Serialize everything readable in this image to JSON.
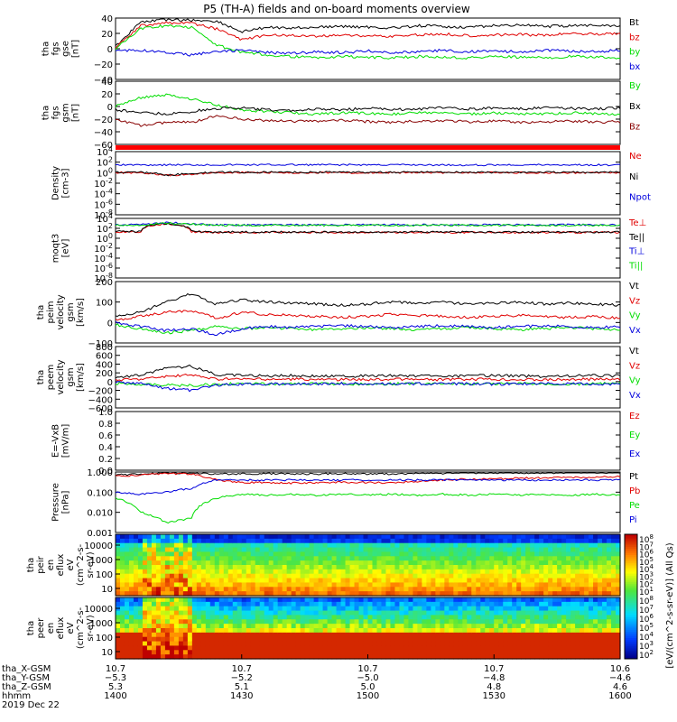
{
  "title": "P5 (TH-A) fields and on-board moments overview",
  "colors": {
    "black": "#000000",
    "red": "#e00000",
    "green": "#00dd00",
    "blue": "#0000dd",
    "darkred": "#880000"
  },
  "colorbar": {
    "label": "[eV/(cm^2-s-sr-eV)] (All Qs)",
    "ticks": [
      "10^8",
      "10^7",
      "10^6",
      "10^5",
      "10^4",
      "10^3",
      "10^2",
      "10^1"
    ],
    "ticks2": [
      "10^8",
      "10^7",
      "10^6",
      "10^5",
      "10^4",
      "10^3",
      "10^2"
    ]
  },
  "chart_data": [
    {
      "type": "line",
      "ylabel_lines": [
        "tha",
        "fgs",
        "gse",
        "[nT]"
      ],
      "ylim": [
        -40,
        40
      ],
      "yticks": [
        "40",
        "20",
        "0",
        "−20",
        "−40"
      ],
      "series": [
        {
          "name": "Bt",
          "color": "#000000",
          "values": [
            3,
            35,
            38,
            37,
            36,
            22,
            28,
            27,
            28,
            29,
            28,
            27,
            30,
            29,
            28,
            30,
            31,
            29,
            30,
            31,
            30
          ]
        },
        {
          "name": "bz",
          "color": "#e00000",
          "values": [
            2,
            30,
            34,
            33,
            26,
            12,
            18,
            17,
            16,
            18,
            17,
            16,
            18,
            19,
            17,
            18,
            19,
            17,
            20,
            19,
            20
          ]
        },
        {
          "name": "by",
          "color": "#00dd00",
          "values": [
            0,
            26,
            30,
            28,
            5,
            -5,
            -8,
            -10,
            -12,
            -10,
            -11,
            -12,
            -10,
            -11,
            -12,
            -10,
            -11,
            -12,
            -10,
            -11,
            -12
          ]
        },
        {
          "name": "bx",
          "color": "#0000dd",
          "values": [
            -2,
            -2,
            -5,
            -8,
            -4,
            -2,
            -5,
            -6,
            -4,
            -5,
            -3,
            -5,
            -4,
            -2,
            -4,
            -3,
            -4,
            -2,
            -3,
            -4,
            -2
          ]
        }
      ]
    },
    {
      "type": "line",
      "ylabel_lines": [
        "tha",
        "fgs",
        "gsm",
        "[nT]"
      ],
      "ylim": [
        -60,
        40
      ],
      "yticks": [
        "40",
        "20",
        "0",
        "−20",
        "−40",
        "−60"
      ],
      "series": [
        {
          "name": "By",
          "color": "#00dd00",
          "values": [
            0,
            14,
            18,
            12,
            2,
            -5,
            -8,
            -10,
            -12,
            -10,
            -11,
            -12,
            -10,
            -11,
            -12,
            -10,
            -11,
            -12,
            -10,
            -11,
            -12
          ]
        },
        {
          "name": "Bx",
          "color": "#000000",
          "values": [
            -5,
            -10,
            -12,
            -8,
            -3,
            -2,
            -5,
            -6,
            -4,
            -5,
            -3,
            -5,
            -4,
            -2,
            -4,
            -3,
            -4,
            -2,
            -3,
            -4,
            -2
          ]
        },
        {
          "name": "Bz",
          "color": "#880000",
          "values": [
            -20,
            -30,
            -25,
            -25,
            -15,
            -20,
            -22,
            -24,
            -23,
            -22,
            -24,
            -25,
            -23,
            -22,
            -24,
            -23,
            -25,
            -24,
            -23,
            -25,
            -24
          ]
        }
      ]
    },
    {
      "type": "line",
      "ylabel_lines": [
        "Density",
        "[cm-3]"
      ],
      "log": true,
      "yticks": [
        "10^4",
        "10^2",
        "10^0",
        "10^-2",
        "10^-4",
        "10^-6",
        "10^-8"
      ],
      "series": [
        {
          "name": "Ne",
          "color": "#e00000",
          "values": [
            1,
            1,
            0.3,
            0.5,
            1,
            1,
            1,
            1,
            1,
            1,
            1,
            1,
            1,
            1,
            1,
            1,
            1,
            1,
            1,
            1,
            1
          ]
        },
        {
          "name": "Ni",
          "color": "#000000",
          "values": [
            1.2,
            1.2,
            0.35,
            0.6,
            1.2,
            1.2,
            1.2,
            1.2,
            1.2,
            1.2,
            1.2,
            1.2,
            1.2,
            1.2,
            1.2,
            1.2,
            1.2,
            1.2,
            1.2,
            1.2,
            1.2
          ]
        },
        {
          "name": "Npot",
          "color": "#0000dd",
          "values": [
            30,
            30,
            30,
            30,
            30,
            30,
            30,
            30,
            30,
            30,
            30,
            30,
            30,
            30,
            30,
            30,
            30,
            30,
            30,
            30,
            30
          ]
        }
      ]
    },
    {
      "type": "line",
      "ylabel_lines": [
        "moqt3",
        "[eV]"
      ],
      "log": true,
      "yticks": [
        "10^4",
        "10^2",
        "10^0",
        "10^-2",
        "10^-4",
        "10^-6",
        "10^-8"
      ],
      "series": [
        {
          "name": "Te⊥",
          "color": "#e00000",
          "values": [
            20,
            20,
            800,
            20,
            15,
            15,
            15,
            15,
            15,
            15,
            15,
            15,
            15,
            15,
            15,
            15,
            15,
            15,
            15,
            15,
            15
          ]
        },
        {
          "name": "Te||",
          "color": "#000000",
          "values": [
            25,
            25,
            900,
            25,
            18,
            18,
            18,
            18,
            18,
            18,
            18,
            18,
            18,
            18,
            18,
            18,
            18,
            18,
            18,
            18,
            18
          ]
        },
        {
          "name": "Ti⊥",
          "color": "#0000dd",
          "values": [
            500,
            500,
            1500,
            800,
            500,
            500,
            500,
            500,
            500,
            500,
            500,
            500,
            500,
            500,
            500,
            500,
            500,
            500,
            500,
            500,
            500
          ]
        },
        {
          "name": "Ti||",
          "color": "#00dd00",
          "values": [
            400,
            400,
            1200,
            700,
            400,
            400,
            400,
            400,
            400,
            400,
            400,
            400,
            400,
            400,
            400,
            400,
            400,
            400,
            400,
            400,
            400
          ]
        }
      ]
    },
    {
      "type": "line",
      "ylabel_lines": [
        "tha",
        "peim",
        "velocity",
        "gsm",
        "[km/s]"
      ],
      "ylim": [
        -100,
        200
      ],
      "yticks": [
        "200",
        "100",
        "0",
        "−100"
      ],
      "series": [
        {
          "name": "Vt",
          "color": "#000000",
          "values": [
            30,
            50,
            100,
            140,
            90,
            110,
            100,
            95,
            90,
            85,
            90,
            100,
            95,
            100,
            90,
            95,
            100,
            90,
            95,
            90,
            85
          ]
        },
        {
          "name": "Vz",
          "color": "#e00000",
          "values": [
            10,
            30,
            50,
            60,
            20,
            50,
            40,
            35,
            30,
            25,
            30,
            40,
            35,
            30,
            25,
            30,
            35,
            30,
            25,
            30,
            20
          ]
        },
        {
          "name": "Vy",
          "color": "#00dd00",
          "values": [
            -10,
            -30,
            -50,
            -40,
            -20,
            -30,
            -25,
            -30,
            -35,
            -30,
            -25,
            -30,
            -35,
            -30,
            -25,
            -30,
            -35,
            -30,
            -25,
            -30,
            -35
          ]
        },
        {
          "name": "Vx",
          "color": "#0000dd",
          "values": [
            0,
            -20,
            -40,
            -30,
            -60,
            -30,
            -20,
            -25,
            -20,
            -15,
            -20,
            -25,
            -20,
            -15,
            -20,
            -25,
            -20,
            -15,
            -20,
            -25,
            -20
          ]
        }
      ]
    },
    {
      "type": "line",
      "ylabel_lines": [
        "tha",
        "peem",
        "velocity",
        "gsm",
        "[km/s]"
      ],
      "ylim": [
        -600,
        800
      ],
      "yticks": [
        "800",
        "600",
        "400",
        "200",
        "0",
        "−200",
        "−400",
        "−600"
      ],
      "series": [
        {
          "name": "Vt",
          "color": "#000000",
          "values": [
            100,
            150,
            300,
            350,
            150,
            150,
            130,
            140,
            130,
            120,
            130,
            140,
            130,
            120,
            130,
            140,
            130,
            120,
            130,
            140,
            130
          ]
        },
        {
          "name": "Vz",
          "color": "#e00000",
          "values": [
            40,
            60,
            120,
            150,
            60,
            60,
            50,
            55,
            50,
            45,
            50,
            55,
            50,
            45,
            50,
            55,
            50,
            45,
            50,
            55,
            50
          ]
        },
        {
          "name": "Vy",
          "color": "#00dd00",
          "values": [
            -40,
            -60,
            -80,
            -90,
            -60,
            -50,
            -55,
            -50,
            -45,
            -50,
            -55,
            -50,
            -45,
            -50,
            -55,
            -50,
            -45,
            -50,
            -55,
            -50,
            -45
          ]
        },
        {
          "name": "Vx",
          "color": "#0000dd",
          "values": [
            -20,
            -50,
            -150,
            -200,
            -80,
            -60,
            -50,
            -55,
            -50,
            -45,
            -50,
            -55,
            -50,
            -45,
            -50,
            -55,
            -50,
            -45,
            -50,
            -55,
            -50
          ]
        }
      ]
    },
    {
      "type": "line",
      "ylabel_lines": [
        "E=-VxB",
        "[mV/m]"
      ],
      "ylim": [
        0,
        1
      ],
      "yticks": [
        "1.0",
        "0.8",
        "0.6",
        "0.4",
        "0.2",
        "0.0"
      ],
      "series": [
        {
          "name": "Ez",
          "color": "#e00000",
          "values": []
        },
        {
          "name": "Ey",
          "color": "#00dd00",
          "values": []
        },
        {
          "name": "Ex",
          "color": "#0000dd",
          "values": []
        }
      ]
    },
    {
      "type": "line",
      "ylabel_lines": [
        "Pressure",
        "[nPa]"
      ],
      "log": true,
      "yticks": [
        "1.000",
        "0.100",
        "0.010",
        "0.001"
      ],
      "series": [
        {
          "name": "Pt",
          "color": "#000000",
          "values": [
            0.7,
            0.8,
            0.9,
            0.9,
            0.8,
            0.8,
            0.85,
            0.8,
            0.8,
            0.85,
            0.8,
            0.8,
            0.85,
            0.85,
            0.9,
            0.9,
            0.9,
            0.9,
            0.95,
            0.95,
            0.95
          ]
        },
        {
          "name": "Pb",
          "color": "#e00000",
          "values": [
            0.6,
            0.7,
            0.85,
            0.8,
            0.4,
            0.3,
            0.3,
            0.28,
            0.3,
            0.32,
            0.3,
            0.3,
            0.35,
            0.4,
            0.45,
            0.45,
            0.5,
            0.5,
            0.55,
            0.55,
            0.6
          ]
        },
        {
          "name": "Pe",
          "color": "#00dd00",
          "values": [
            0.05,
            0.01,
            0.003,
            0.005,
            0.05,
            0.08,
            0.07,
            0.08,
            0.07,
            0.08,
            0.07,
            0.08,
            0.07,
            0.08,
            0.07,
            0.08,
            0.07,
            0.08,
            0.07,
            0.08,
            0.07
          ]
        },
        {
          "name": "Pi",
          "color": "#0000dd",
          "values": [
            0.1,
            0.08,
            0.1,
            0.15,
            0.4,
            0.4,
            0.4,
            0.4,
            0.4,
            0.4,
            0.4,
            0.4,
            0.4,
            0.4,
            0.4,
            0.4,
            0.4,
            0.4,
            0.4,
            0.4,
            0.4
          ]
        }
      ]
    },
    {
      "type": "heatmap",
      "ylabel_lines": [
        "tha",
        "peir",
        "en",
        "eflux",
        "eV",
        "(cm^2-s-",
        "sr-eV)"
      ],
      "yticks": [
        "10000",
        "1000",
        "100",
        "10"
      ]
    },
    {
      "type": "heatmap",
      "ylabel_lines": [
        "tha",
        "peer",
        "en",
        "eflux",
        "eV",
        "(cm^2-s-",
        "sr-eV)"
      ],
      "yticks": [
        "10000",
        "1000",
        "100",
        "10"
      ]
    }
  ],
  "xaxis": {
    "rows": [
      {
        "label": "tha_X-GSM",
        "values": [
          "10.7",
          "10.7",
          "10.7",
          "10.7",
          "10.6"
        ]
      },
      {
        "label": "tha_Y-GSM",
        "values": [
          "−5.3",
          "−5.2",
          "−5.0",
          "−4.8",
          "−4.6"
        ]
      },
      {
        "label": "tha_Z-GSM",
        "values": [
          "5.3",
          "5.1",
          "5.0",
          "4.8",
          "4.6"
        ]
      },
      {
        "label": "hhmm",
        "values": [
          "1400",
          "1430",
          "1500",
          "1530",
          "1600"
        ]
      }
    ],
    "date": "2019 Dec 22"
  }
}
